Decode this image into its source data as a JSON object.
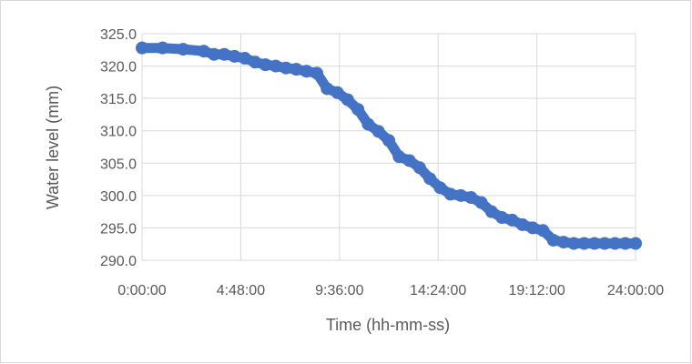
{
  "chart_data": {
    "type": "scatter",
    "title": "",
    "xlabel": "Time (hh-mm-ss)",
    "ylabel": "Water level (mm)",
    "xlim": [
      "0:00:00",
      "24:00:00"
    ],
    "ylim": [
      290.0,
      325.0
    ],
    "grid": true,
    "legend": "none",
    "x_ticks": [
      "0:00:00",
      "4:48:00",
      "9:36:00",
      "14:24:00",
      "19:12:00",
      "24:00:00"
    ],
    "y_ticks": [
      "290.0",
      "295.0",
      "300.0",
      "305.0",
      "310.0",
      "315.0",
      "320.0",
      "325.0"
    ],
    "series": [
      {
        "color": "#4472c4",
        "x": [
          "0:00:00",
          "1:00:00",
          "2:00:00",
          "3:00:00",
          "3:30:00",
          "4:00:00",
          "4:30:00",
          "5:00:00",
          "5:30:00",
          "6:00:00",
          "6:30:00",
          "7:00:00",
          "7:30:00",
          "8:00:00",
          "8:30:00",
          "9:00:00",
          "9:30:00",
          "10:00:00",
          "10:30:00",
          "11:00:00",
          "11:30:00",
          "12:00:00",
          "12:30:00",
          "13:00:00",
          "13:30:00",
          "14:00:00",
          "14:30:00",
          "15:00:00",
          "15:30:00",
          "16:00:00",
          "16:30:00",
          "17:00:00",
          "17:30:00",
          "18:00:00",
          "18:30:00",
          "19:00:00",
          "19:30:00",
          "20:00:00",
          "20:30:00",
          "21:00:00",
          "21:30:00",
          "22:00:00",
          "22:30:00",
          "23:00:00",
          "23:30:00",
          "24:00:00"
        ],
        "y": [
          322.8,
          322.8,
          322.6,
          322.3,
          321.8,
          321.8,
          321.5,
          321.2,
          320.6,
          320.2,
          320.0,
          319.7,
          319.5,
          319.2,
          318.9,
          316.5,
          315.9,
          314.8,
          313.3,
          311.0,
          309.9,
          308.5,
          306.0,
          305.4,
          304.3,
          302.6,
          301.2,
          300.2,
          300.0,
          299.7,
          298.9,
          297.5,
          296.6,
          296.2,
          295.5,
          295.0,
          294.6,
          293.1,
          292.8,
          292.6,
          292.6,
          292.6,
          292.6,
          292.6,
          292.6,
          292.6
        ]
      }
    ]
  }
}
